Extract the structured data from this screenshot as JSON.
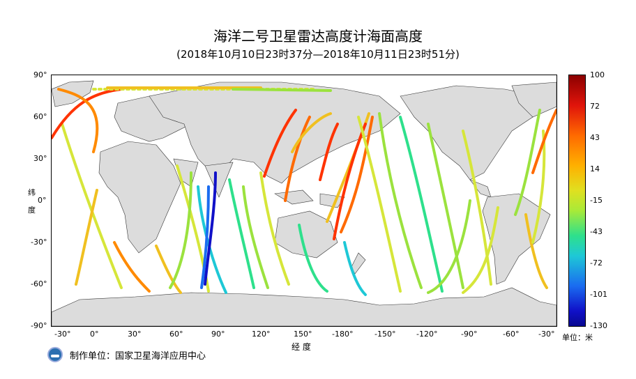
{
  "title": "海洋二号卫星雷达高度计海面高度",
  "subtitle": "(2018年10月10日23时37分—2018年10月11日23时51分)",
  "y_axis_label": [
    "纬",
    "度"
  ],
  "x_axis_label": "经  度",
  "lat_ticks": [
    "90°",
    "60°",
    "30°",
    "0°",
    "-30°",
    "-60°",
    "-90°"
  ],
  "lon_ticks": [
    "-30°",
    "0°",
    "30°",
    "60°",
    "90°",
    "120°",
    "150°",
    "-180°",
    "-150°",
    "-120°",
    "-90°",
    "-60°",
    "-30°"
  ],
  "colorbar": {
    "ticks": [
      "100",
      "72",
      "43",
      "14",
      "-15",
      "-43",
      "-72",
      "-101",
      "-130"
    ],
    "unit_label": "单位：米",
    "min": -130,
    "max": 100
  },
  "footer": {
    "label": "制作单位：国家卫星海洋应用中心",
    "logo_icon": "agency-logo-icon"
  },
  "map": {
    "land_color": "#dcdcdc",
    "ocean_color": "#ffffff",
    "track_colors": [
      "#ff3300",
      "#ff8a00",
      "#f0c020",
      "#d6e63a",
      "#9be23e",
      "#2ee08c",
      "#1ec8d6",
      "#1a6cf0",
      "#1010c8"
    ]
  }
}
